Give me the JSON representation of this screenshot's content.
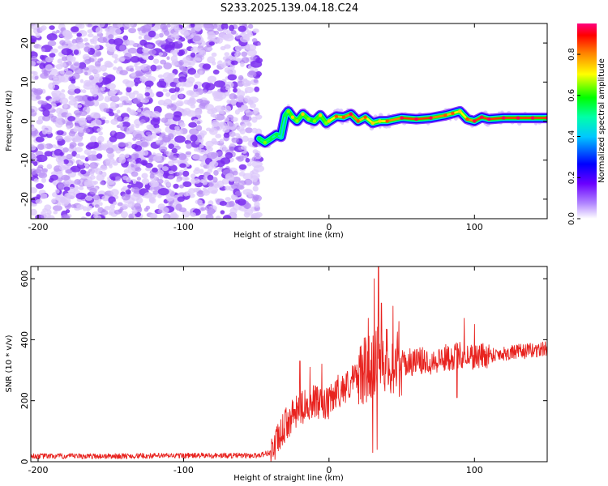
{
  "chart_data": [
    {
      "type": "heatmap",
      "title": "S233.2025.139.04.18.C24",
      "xlabel": "Height of straight line (km)",
      "ylabel": "Frequency (Hz)",
      "xlim": [
        -205,
        150
      ],
      "ylim": [
        -25,
        25
      ],
      "xticks": [
        -200,
        -100,
        0,
        100
      ],
      "yticks": [
        -20,
        -10,
        0,
        10,
        20
      ],
      "colorbar": {
        "label": "Normalized spectral amplitude",
        "range": [
          0.0,
          0.95
        ],
        "ticks": [
          0.0,
          0.2,
          0.4,
          0.6,
          0.8
        ],
        "colors": [
          "#ffffff",
          "#6a00ff",
          "#0000ff",
          "#00ffff",
          "#00ff00",
          "#ffff00",
          "#ff8000",
          "#ff0000",
          "#ff0080"
        ]
      },
      "noise_region": {
        "x_range": [
          -205,
          -48
        ],
        "y_range": [
          -25,
          25
        ],
        "amplitude": [
          0.02,
          0.12
        ]
      },
      "tone_trace": {
        "x": [
          -48,
          -44,
          -40,
          -36,
          -33,
          -30,
          -28,
          -25,
          -22,
          -18,
          -14,
          -10,
          -6,
          -2,
          0,
          5,
          10,
          15,
          20,
          25,
          30,
          35,
          40,
          50,
          60,
          70,
          80,
          85,
          90,
          95,
          100,
          105,
          110,
          120,
          130,
          140,
          150
        ],
        "y": [
          -4.5,
          -5.5,
          -4.5,
          -3.5,
          -4.0,
          1.5,
          2.5,
          1.0,
          0.0,
          1.8,
          0.5,
          0.0,
          1.5,
          -0.5,
          0.0,
          1.2,
          1.0,
          1.8,
          0.0,
          1.0,
          -0.5,
          0.0,
          0.0,
          0.8,
          0.5,
          0.8,
          1.5,
          2.0,
          2.5,
          0.5,
          0.0,
          1.0,
          0.5,
          0.8,
          0.8,
          0.8,
          0.8
        ],
        "amplitude": [
          0.5,
          0.6,
          0.5,
          0.5,
          0.4,
          0.5,
          0.6,
          0.7,
          0.6,
          0.7,
          0.6,
          0.6,
          0.7,
          0.6,
          0.7,
          0.8,
          0.8,
          0.9,
          0.8,
          0.8,
          0.7,
          0.7,
          0.8,
          0.9,
          0.9,
          0.9,
          0.8,
          0.8,
          0.7,
          0.8,
          0.9,
          0.9,
          0.9,
          0.9,
          0.9,
          0.9,
          0.9
        ]
      }
    },
    {
      "type": "line",
      "xlabel": "Height of straight line (km)",
      "ylabel": "SNR (10 * v/v)",
      "xlim": [
        -205,
        150
      ],
      "ylim": [
        0,
        640
      ],
      "xticks": [
        -200,
        -100,
        0,
        100
      ],
      "yticks": [
        0,
        200,
        400,
        600
      ],
      "line_color": "#e8231f",
      "x": [
        -205,
        -150,
        -100,
        -50,
        -40,
        -35,
        -30,
        -25,
        -20,
        -15,
        -10,
        -5,
        0,
        5,
        10,
        15,
        20,
        25,
        30,
        35,
        40,
        45,
        50,
        60,
        70,
        80,
        90,
        100,
        110,
        120,
        130,
        140,
        150
      ],
      "y": [
        18,
        18,
        20,
        20,
        30,
        70,
        120,
        150,
        170,
        190,
        200,
        180,
        190,
        230,
        240,
        260,
        280,
        300,
        320,
        350,
        330,
        320,
        320,
        330,
        330,
        340,
        350,
        345,
        350,
        355,
        360,
        365,
        370
      ],
      "spikes": [
        {
          "x": -20,
          "y": 330
        },
        {
          "x": -13,
          "y": 310
        },
        {
          "x": -5,
          "y": 320
        },
        {
          "x": 22,
          "y": 380
        },
        {
          "x": 27,
          "y": 470
        },
        {
          "x": 31,
          "y": 600
        },
        {
          "x": 34,
          "y": 640
        },
        {
          "x": 36,
          "y": 520
        },
        {
          "x": 44,
          "y": 510
        },
        {
          "x": 48,
          "y": 460
        },
        {
          "x": 93,
          "y": 470
        },
        {
          "x": 100,
          "y": 450
        }
      ],
      "dips": [
        {
          "x": 30,
          "y": 30
        },
        {
          "x": 33,
          "y": 40
        },
        {
          "x": 88,
          "y": 210
        }
      ]
    }
  ]
}
